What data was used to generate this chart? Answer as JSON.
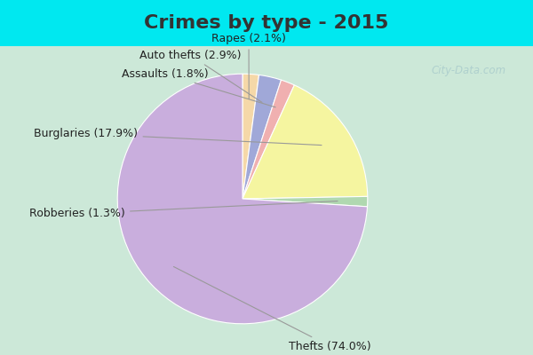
{
  "title": "Crimes by type - 2015",
  "slices": [
    {
      "label": "Thefts",
      "pct": 74.0,
      "color": "#c9aedd"
    },
    {
      "label": "Burglaries",
      "pct": 17.9,
      "color": "#f5f5a0"
    },
    {
      "label": "Assaults",
      "pct": 1.8,
      "color": "#f0b0b0"
    },
    {
      "label": "Auto thefts",
      "pct": 2.9,
      "color": "#a0a8d8"
    },
    {
      "label": "Rapes",
      "pct": 2.1,
      "color": "#f5d8a8"
    },
    {
      "label": "Robberies",
      "pct": 1.3,
      "color": "#b0d8b0"
    }
  ],
  "background_cyan": "#00e8f0",
  "background_main": "#cce8d8",
  "title_fontsize": 16,
  "label_fontsize": 9,
  "watermark": "City-Data.com",
  "title_color": "#333333",
  "label_color": "#222222"
}
